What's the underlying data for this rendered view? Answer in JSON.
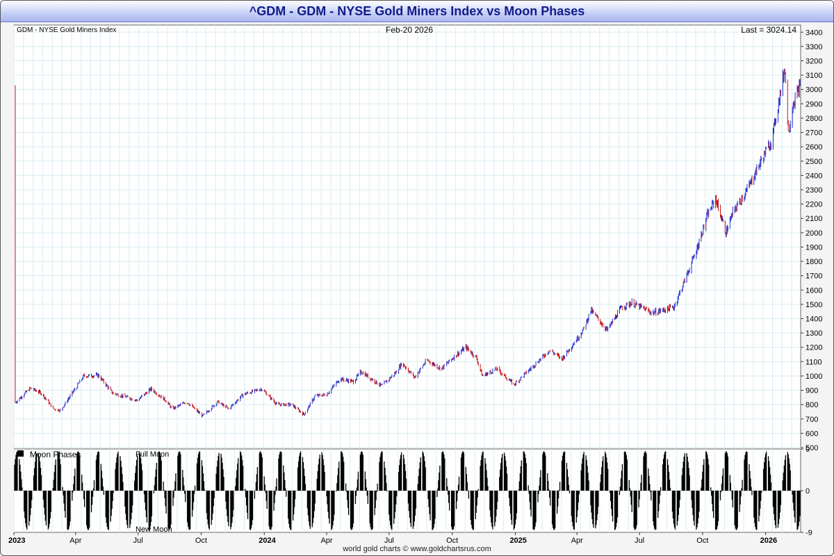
{
  "title": "^GDM - GDM - NYSE Gold Miners Index vs Moon Phases",
  "footer": "world gold charts © www.goldchartsrus.com",
  "colors": {
    "up": "#1f2fcf",
    "down": "#cc1111",
    "title": "#111c8a",
    "grid": "#d9ecef"
  },
  "chart_data": [
    {
      "type": "candlestick",
      "series_name": "GDM - NYSE Gold Miners Index",
      "date_label": "Feb-20  2026",
      "last_label": "Last = 3024.14",
      "last_value": 3024.14,
      "ylim": [
        500,
        3450
      ],
      "y_ticks": [
        500,
        600,
        700,
        800,
        900,
        1000,
        1100,
        1200,
        1300,
        1400,
        1500,
        1600,
        1700,
        1800,
        1900,
        2000,
        2100,
        2200,
        2300,
        2400,
        2500,
        2600,
        2700,
        2800,
        2900,
        3000,
        3100,
        3200,
        3300,
        3400
      ],
      "x_range": [
        "2023-01-01",
        "2026-02-20"
      ],
      "x_ticks": [
        {
          "date": "2023-01-01",
          "label": "2023",
          "bold": true
        },
        {
          "date": "2023-04-01",
          "label": "Apr"
        },
        {
          "date": "2023-07-01",
          "label": "Jul"
        },
        {
          "date": "2023-10-01",
          "label": "Oct"
        },
        {
          "date": "2024-01-01",
          "label": "2024",
          "bold": true
        },
        {
          "date": "2024-04-01",
          "label": "Apr"
        },
        {
          "date": "2024-07-01",
          "label": "Jul"
        },
        {
          "date": "2024-10-01",
          "label": "Oct"
        },
        {
          "date": "2025-01-01",
          "label": "2025",
          "bold": true
        },
        {
          "date": "2025-04-01",
          "label": "Apr"
        },
        {
          "date": "2025-07-01",
          "label": "Jul"
        },
        {
          "date": "2025-10-01",
          "label": "Oct"
        },
        {
          "date": "2026-01-01",
          "label": "2026",
          "bold": true
        }
      ],
      "close_trend": [
        [
          "2023-01-03",
          815
        ],
        [
          "2023-01-25",
          915
        ],
        [
          "2023-02-10",
          880
        ],
        [
          "2023-02-28",
          770
        ],
        [
          "2023-03-10",
          760
        ],
        [
          "2023-04-13",
          1000
        ],
        [
          "2023-05-04",
          1005
        ],
        [
          "2023-05-25",
          880
        ],
        [
          "2023-06-30",
          830
        ],
        [
          "2023-07-20",
          910
        ],
        [
          "2023-08-10",
          830
        ],
        [
          "2023-08-20",
          770
        ],
        [
          "2023-09-10",
          820
        ],
        [
          "2023-10-03",
          720
        ],
        [
          "2023-10-25",
          820
        ],
        [
          "2023-11-10",
          770
        ],
        [
          "2023-12-01",
          870
        ],
        [
          "2023-12-28",
          910
        ],
        [
          "2024-01-20",
          800
        ],
        [
          "2024-02-10",
          800
        ],
        [
          "2024-02-28",
          730
        ],
        [
          "2024-03-15",
          860
        ],
        [
          "2024-04-01",
          870
        ],
        [
          "2024-04-20",
          980
        ],
        [
          "2024-05-10",
          960
        ],
        [
          "2024-05-21",
          1030
        ],
        [
          "2024-06-20",
          930
        ],
        [
          "2024-07-10",
          1020
        ],
        [
          "2024-07-20",
          1090
        ],
        [
          "2024-08-07",
          990
        ],
        [
          "2024-08-25",
          1110
        ],
        [
          "2024-09-15",
          1050
        ],
        [
          "2024-10-05",
          1140
        ],
        [
          "2024-10-21",
          1200
        ],
        [
          "2024-11-05",
          1130
        ],
        [
          "2024-11-14",
          1000
        ],
        [
          "2024-12-05",
          1050
        ],
        [
          "2024-12-30",
          940
        ],
        [
          "2025-01-25",
          1060
        ],
        [
          "2025-02-20",
          1180
        ],
        [
          "2025-03-10",
          1120
        ],
        [
          "2025-04-01",
          1260
        ],
        [
          "2025-04-11",
          1330
        ],
        [
          "2025-04-21",
          1460
        ],
        [
          "2025-05-15",
          1320
        ],
        [
          "2025-06-05",
          1480
        ],
        [
          "2025-06-20",
          1510
        ],
        [
          "2025-07-20",
          1440
        ],
        [
          "2025-08-20",
          1480
        ],
        [
          "2025-09-01",
          1620
        ],
        [
          "2025-09-20",
          1850
        ],
        [
          "2025-10-08",
          2120
        ],
        [
          "2025-10-20",
          2240
        ],
        [
          "2025-11-04",
          2000
        ],
        [
          "2025-11-15",
          2150
        ],
        [
          "2025-12-05",
          2300
        ],
        [
          "2025-12-20",
          2450
        ],
        [
          "2026-01-10",
          2650
        ],
        [
          "2026-01-29",
          3150
        ],
        [
          "2026-02-03",
          2700
        ],
        [
          "2026-02-10",
          2900
        ],
        [
          "2026-02-20",
          3024
        ]
      ]
    },
    {
      "type": "bar",
      "series_name": "Moon Phases",
      "label_top": "Full Moon",
      "label_bottom": "New Moon",
      "ylim": [
        -9,
        9
      ],
      "y_ticks": [
        9,
        0,
        -9
      ],
      "x_range": [
        "2023-01-01",
        "2026-02-20"
      ],
      "first_full_moon": "2023-01-06",
      "cycle_days": 29.53
    }
  ]
}
